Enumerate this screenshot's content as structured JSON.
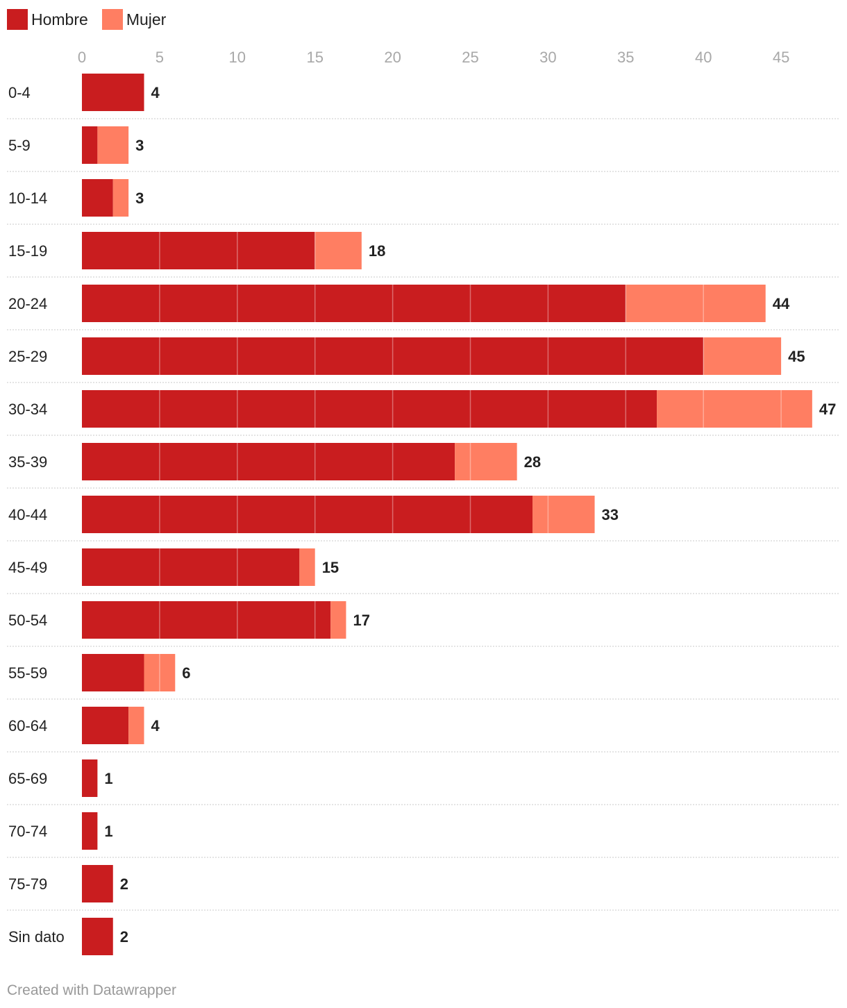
{
  "legend": {
    "items": [
      {
        "label": "Hombre",
        "color": "#c91d1f"
      },
      {
        "label": "Mujer",
        "color": "#ff7e62"
      }
    ]
  },
  "chart_data": {
    "type": "bar",
    "orientation": "horizontal",
    "stacked": true,
    "categories": [
      "0-4",
      "5-9",
      "10-14",
      "15-19",
      "20-24",
      "25-29",
      "30-34",
      "35-39",
      "40-44",
      "45-49",
      "50-54",
      "55-59",
      "60-64",
      "65-69",
      "70-74",
      "75-79",
      "Sin dato"
    ],
    "series": [
      {
        "name": "Hombre",
        "color": "#c91d1f",
        "values": [
          4,
          1,
          2,
          15,
          35,
          40,
          37,
          24,
          29,
          14,
          16,
          4,
          3,
          1,
          1,
          2,
          2
        ]
      },
      {
        "name": "Mujer",
        "color": "#ff7e62",
        "values": [
          0,
          2,
          1,
          3,
          9,
          5,
          10,
          4,
          4,
          1,
          1,
          2,
          1,
          0,
          0,
          0,
          0
        ]
      }
    ],
    "totals": [
      4,
      3,
      3,
      18,
      44,
      45,
      47,
      28,
      33,
      15,
      17,
      6,
      4,
      1,
      1,
      2,
      2
    ],
    "x_ticks": [
      0,
      5,
      10,
      15,
      20,
      25,
      30,
      35,
      40,
      45
    ],
    "xlim": [
      0,
      48
    ],
    "title": "",
    "xlabel": "",
    "ylabel": ""
  },
  "footer": {
    "credit": "Created with Datawrapper"
  }
}
